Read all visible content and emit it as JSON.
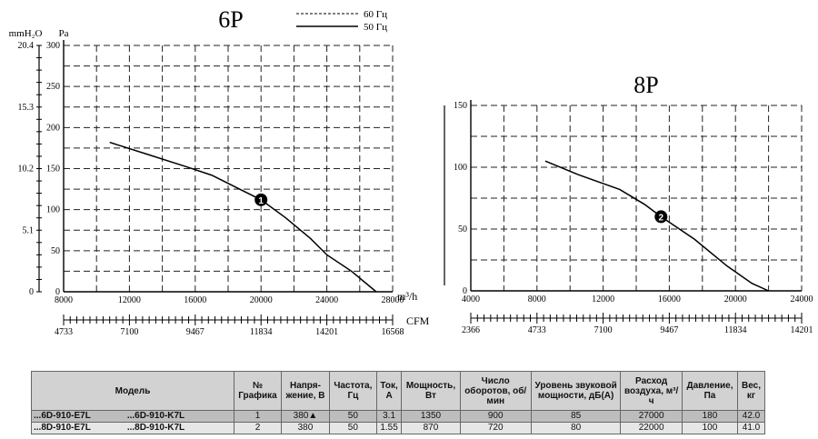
{
  "chart_data": [
    {
      "type": "line",
      "title": "6P",
      "legend": [
        {
          "style": "dashed",
          "label": "60 Гц"
        },
        {
          "style": "solid",
          "label": "50 Гц"
        }
      ],
      "legend_position": "top-center",
      "xlabel": "m³/h",
      "ylabel": "Pa",
      "ylabel_secondary": "mmH₂O",
      "xlabel_secondary": "CFM",
      "x_ticks": [
        "8000",
        "12000",
        "16000",
        "20000",
        "24000",
        "28000"
      ],
      "y_ticks": [
        "0",
        "50",
        "100",
        "150",
        "200",
        "250",
        "300"
      ],
      "y_secondary_ticks": [
        "0",
        "5.1",
        "10.2",
        "15.3",
        "20.4"
      ],
      "cfm_ticks": [
        "4733",
        "7100",
        "9467",
        "11834",
        "14201",
        "16568"
      ],
      "xlim": [
        8000,
        28000
      ],
      "ylim": [
        0,
        300
      ],
      "grid": true,
      "series": [
        {
          "name": "50 Гц",
          "style": "solid",
          "x": [
            10800,
            13000,
            15500,
            17000,
            18500,
            20000,
            21500,
            23000,
            24000,
            25500,
            27000
          ],
          "y": [
            182,
            168,
            152,
            142,
            127,
            112,
            90,
            65,
            45,
            25,
            0
          ]
        }
      ],
      "marker": {
        "label": "1",
        "x": 20000,
        "y": 112
      }
    },
    {
      "type": "line",
      "title": "8P",
      "x_ticks": [
        "4000",
        "8000",
        "12000",
        "16000",
        "20000",
        "24000"
      ],
      "y_ticks": [
        "0",
        "50",
        "100",
        "150"
      ],
      "cfm_ticks": [
        "2366",
        "4733",
        "7100",
        "9467",
        "11834",
        "14201"
      ],
      "xlim": [
        4000,
        24000
      ],
      "ylim": [
        0,
        150
      ],
      "grid": true,
      "series": [
        {
          "name": "50 Гц",
          "style": "solid",
          "x": [
            8500,
            10500,
            13000,
            14500,
            15500,
            17500,
            19500,
            21000,
            22000
          ],
          "y": [
            105,
            94,
            82,
            70,
            60,
            42,
            20,
            6,
            0
          ]
        }
      ],
      "marker": {
        "label": "2",
        "x": 15500,
        "y": 60
      }
    }
  ],
  "table": {
    "headers": [
      "Модель",
      "№ Графика",
      "Напря-жение, В",
      "Частота, Гц",
      "Ток, А",
      "Мощность, Вт",
      "Число оборотов, об/мин",
      "Уровень звуковой мощности, дБ(А)",
      "Расход воздуха, м³/ч",
      "Давление, Па",
      "Вес, кг"
    ],
    "rows": [
      {
        "model_a": "...6D-910-E7L",
        "model_b": "...6D-910-K7L",
        "cells": [
          "1",
          "380▲",
          "50",
          "3.1",
          "1350",
          "900",
          "85",
          "27000",
          "180",
          "42.0"
        ]
      },
      {
        "model_a": "...8D-910-E7L",
        "model_b": "...8D-910-K7L",
        "cells": [
          "2",
          "380",
          "50",
          "1.55",
          "870",
          "720",
          "80",
          "22000",
          "100",
          "41.0"
        ]
      }
    ]
  }
}
